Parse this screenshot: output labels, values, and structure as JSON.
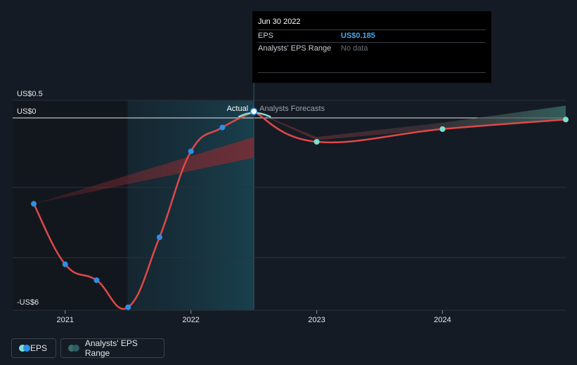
{
  "chart_data": {
    "type": "line",
    "y_axis": {
      "min": -6.0,
      "max": 0.5,
      "labels": [
        {
          "text": "US$0.5",
          "value": 0.5
        },
        {
          "text": "US$0",
          "value": 0.0
        },
        {
          "text": "-US$6",
          "value": -6.0
        }
      ]
    },
    "x_axis": {
      "min": 2020.5,
      "max": 2024.98,
      "ticks": [
        {
          "label": "2021",
          "value": 2021.0
        },
        {
          "label": "2022",
          "value": 2022.0
        },
        {
          "label": "2023",
          "value": 2023.0
        },
        {
          "label": "2024",
          "value": 2024.0
        }
      ]
    },
    "divider_x": 2022.5,
    "highlight_start_x": 2021.5,
    "past_label": "Actual",
    "future_label": "Analysts Forecasts",
    "actual_eps": [
      {
        "x": 2020.75,
        "y": -2.7
      },
      {
        "x": 2021.0,
        "y": -4.6
      },
      {
        "x": 2021.25,
        "y": -5.1
      },
      {
        "x": 2021.5,
        "y": -5.95
      },
      {
        "x": 2021.75,
        "y": -3.75
      },
      {
        "x": 2022.0,
        "y": -1.05
      },
      {
        "x": 2022.25,
        "y": -0.3
      },
      {
        "x": 2022.5,
        "y": 0.185
      }
    ],
    "forecast_eps": [
      {
        "x": 2022.5,
        "y": 0.185
      },
      {
        "x": 2023.0,
        "y": -0.75
      },
      {
        "x": 2024.0,
        "y": -0.35
      },
      {
        "x": 2024.98,
        "y": -0.05
      }
    ],
    "past_range_band": {
      "x": [
        2020.75,
        2022.5
      ],
      "upper": [
        -2.7,
        -0.6
      ],
      "lower": [
        -2.7,
        -1.25
      ]
    },
    "forecast_range_band": {
      "x": [
        2022.5,
        2023.0,
        2024.0,
        2024.98
      ],
      "upper": [
        0.185,
        -0.6,
        -0.15,
        0.35
      ],
      "lower": [
        0.185,
        -0.7,
        -0.35,
        -0.05
      ]
    },
    "colors": {
      "eps_line": "#e04848",
      "actual_point": "#2f8fe6",
      "forecast_point": "#7de0cf",
      "band": "#8a2a31",
      "forecast_band_end": "#3a6e68",
      "highlight": "#163a47",
      "divider": "#2e5a66"
    }
  },
  "tooltip": {
    "date": "Jun 30 2022",
    "eps_label": "EPS",
    "eps_value": "US$0.185",
    "range_label": "Analysts' EPS Range",
    "range_value": "No data"
  },
  "legend": {
    "eps": "EPS",
    "range": "Analysts' EPS Range"
  }
}
